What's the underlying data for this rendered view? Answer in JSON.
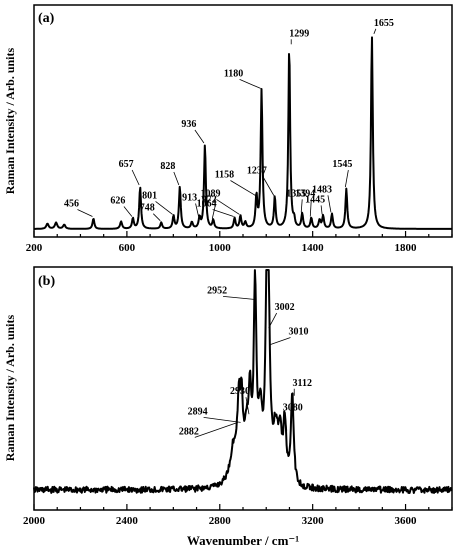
{
  "chart_data": [
    {
      "type": "line",
      "panel_label": "(a)",
      "xlabel": "",
      "ylabel": "Raman Intensity / Arb. units",
      "xlim": [
        200,
        2000
      ],
      "ylim": [
        0,
        1
      ],
      "xticks": [
        200,
        600,
        1000,
        1400,
        1800
      ],
      "y_tick_labels_shown": false,
      "grid": false,
      "peaks": [
        {
          "x": 456,
          "label": "456",
          "h": 0.05
        },
        {
          "x": 626,
          "label": "626",
          "h": 0.05
        },
        {
          "x": 657,
          "label": "657",
          "h": 0.2
        },
        {
          "x": 748,
          "label": "748",
          "h": 0.03
        },
        {
          "x": 801,
          "label": "801",
          "h": 0.06
        },
        {
          "x": 828,
          "label": "828",
          "h": 0.2
        },
        {
          "x": 913,
          "label": "913",
          "h": 0.05
        },
        {
          "x": 936,
          "label": "936",
          "h": 0.4
        },
        {
          "x": 972,
          "label": "972",
          "h": 0.04
        },
        {
          "x": 1064,
          "label": "1064",
          "h": 0.05
        },
        {
          "x": 1089,
          "label": "1089",
          "h": 0.06
        },
        {
          "x": 1158,
          "label": "1158",
          "h": 0.15
        },
        {
          "x": 1180,
          "label": "1180",
          "h": 0.66
        },
        {
          "x": 1237,
          "label": "1237",
          "h": 0.15
        },
        {
          "x": 1299,
          "label": "1299",
          "h": 0.87
        },
        {
          "x": 1355,
          "label": "1355",
          "h": 0.07
        },
        {
          "x": 1394,
          "label": "1394",
          "h": 0.05
        },
        {
          "x": 1445,
          "label": "1445",
          "h": 0.06
        },
        {
          "x": 1483,
          "label": "1483",
          "h": 0.07
        },
        {
          "x": 1545,
          "label": "1545",
          "h": 0.19
        },
        {
          "x": 1655,
          "label": "1655",
          "h": 0.92
        }
      ]
    },
    {
      "type": "line",
      "panel_label": "(b)",
      "xlabel": "Wavenumber / cm⁻¹",
      "ylabel": "Raman Intensity / Arb. units",
      "xlim": [
        2000,
        3800
      ],
      "ylim": [
        0,
        1
      ],
      "xticks": [
        2000,
        2400,
        2800,
        3200,
        3600
      ],
      "y_tick_labels_shown": false,
      "grid": false,
      "peaks": [
        {
          "x": 2882,
          "label": "2882",
          "h": 0.32
        },
        {
          "x": 2894,
          "label": "2894",
          "h": 0.32
        },
        {
          "x": 2930,
          "label": "2930",
          "h": 0.36
        },
        {
          "x": 2952,
          "label": "2952",
          "h": 0.92
        },
        {
          "x": 3002,
          "label": "3002",
          "h": 0.78
        },
        {
          "x": 3010,
          "label": "3010",
          "h": 0.7
        },
        {
          "x": 3080,
          "label": "3080",
          "h": 0.28
        },
        {
          "x": 3112,
          "label": "3112",
          "h": 0.45
        }
      ]
    }
  ]
}
